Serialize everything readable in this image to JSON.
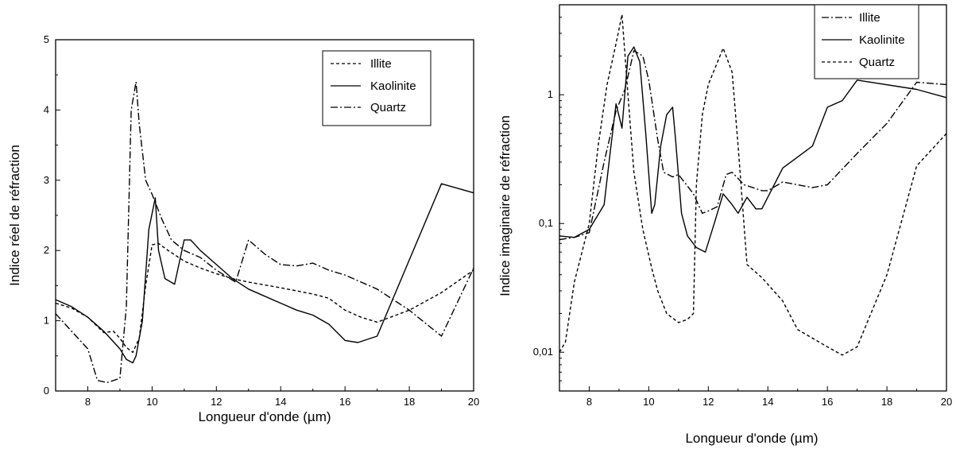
{
  "chart_data": [
    {
      "type": "line",
      "xlabel": "Longueur d'onde (µm)",
      "ylabel": "Indice réel de réfraction",
      "xlim": [
        7,
        20
      ],
      "ylim": [
        0,
        5
      ],
      "xticks": [
        "8",
        "10",
        "12",
        "14",
        "16",
        "18",
        "20"
      ],
      "yticks": [
        "0",
        "1",
        "2",
        "3",
        "4",
        "5"
      ],
      "legend_position": "top-right",
      "series": [
        {
          "name": "Illite",
          "dash": "dashed",
          "x": [
            7.0,
            7.5,
            8.0,
            8.5,
            8.8,
            9.0,
            9.2,
            9.4,
            9.6,
            9.8,
            10.0,
            10.2,
            10.5,
            11.0,
            11.5,
            12.0,
            12.5,
            13.0,
            14.0,
            15.0,
            15.5,
            16.0,
            16.5,
            17.0,
            18.0,
            19.0,
            20.0
          ],
          "y": [
            1.25,
            1.18,
            1.05,
            0.83,
            0.85,
            0.75,
            0.62,
            0.55,
            0.75,
            1.5,
            2.08,
            2.1,
            2.0,
            1.85,
            1.75,
            1.67,
            1.6,
            1.55,
            1.47,
            1.38,
            1.32,
            1.15,
            1.05,
            0.98,
            1.15,
            1.4,
            1.72
          ]
        },
        {
          "name": "Kaolinite",
          "dash": "solid",
          "x": [
            7.0,
            7.5,
            8.0,
            8.5,
            9.0,
            9.2,
            9.4,
            9.5,
            9.7,
            9.9,
            10.1,
            10.2,
            10.4,
            10.7,
            11.0,
            11.2,
            11.5,
            12.0,
            12.5,
            13.0,
            13.5,
            14.0,
            14.5,
            15.0,
            15.5,
            16.0,
            16.4,
            17.0,
            19.0,
            20.0
          ],
          "y": [
            1.3,
            1.2,
            1.05,
            0.85,
            0.6,
            0.45,
            0.4,
            0.5,
            1.0,
            2.3,
            2.75,
            2.0,
            1.6,
            1.52,
            2.15,
            2.15,
            2.0,
            1.8,
            1.6,
            1.45,
            1.35,
            1.25,
            1.15,
            1.08,
            0.95,
            0.72,
            0.69,
            0.78,
            2.95,
            2.82
          ]
        },
        {
          "name": "Quartz",
          "dash": "dashdot",
          "x": [
            7.0,
            7.5,
            8.0,
            8.3,
            8.6,
            9.0,
            9.2,
            9.35,
            9.5,
            9.6,
            9.8,
            10.0,
            10.3,
            10.6,
            11.0,
            11.5,
            12.0,
            12.6,
            13.0,
            13.5,
            14.0,
            14.5,
            15.0,
            15.5,
            16.0,
            16.5,
            17.0,
            17.5,
            18.0,
            19.0,
            20.0
          ],
          "y": [
            1.1,
            0.85,
            0.6,
            0.15,
            0.12,
            0.18,
            1.2,
            4.0,
            4.4,
            3.8,
            3.0,
            2.8,
            2.45,
            2.15,
            2.0,
            1.9,
            1.72,
            1.55,
            2.15,
            1.95,
            1.8,
            1.78,
            1.82,
            1.72,
            1.65,
            1.55,
            1.45,
            1.3,
            1.15,
            0.78,
            1.75
          ]
        }
      ]
    },
    {
      "type": "line",
      "xlabel": "Longueur d'onde (µm)",
      "ylabel": "Indice imaginaire de réfraction",
      "xlim": [
        7,
        20
      ],
      "ylim": [
        0.005,
        5
      ],
      "yscale": "log",
      "xticks": [
        "8",
        "10",
        "12",
        "14",
        "16",
        "18",
        "20"
      ],
      "yticks": [
        {
          "value": 0.01,
          "label": "0,01"
        },
        {
          "value": 0.1,
          "label": "0,1"
        },
        {
          "value": 1,
          "label": "1"
        }
      ],
      "legend_position": "top-right",
      "series": [
        {
          "name": "Illite",
          "dash": "dashdot",
          "x": [
            7.0,
            7.5,
            8.0,
            8.5,
            8.9,
            9.2,
            9.5,
            9.8,
            10.0,
            10.3,
            10.5,
            10.8,
            11.0,
            11.5,
            11.8,
            12.0,
            12.3,
            12.6,
            12.8,
            13.2,
            13.5,
            13.8,
            14.0,
            14.5,
            15.0,
            15.5,
            16.0,
            17.0,
            18.0,
            19.0,
            20.0
          ],
          "y": [
            0.075,
            0.078,
            0.085,
            0.3,
            0.75,
            1.1,
            2.2,
            2.0,
            1.3,
            0.45,
            0.25,
            0.23,
            0.24,
            0.17,
            0.12,
            0.125,
            0.135,
            0.24,
            0.25,
            0.2,
            0.19,
            0.18,
            0.18,
            0.21,
            0.2,
            0.19,
            0.2,
            0.35,
            0.6,
            1.25,
            1.2
          ]
        },
        {
          "name": "Kaolinite",
          "dash": "solid",
          "x": [
            7.0,
            7.5,
            8.0,
            8.5,
            8.7,
            8.9,
            9.1,
            9.3,
            9.5,
            9.7,
            9.9,
            10.1,
            10.2,
            10.4,
            10.6,
            10.8,
            10.9,
            11.1,
            11.3,
            11.6,
            11.9,
            12.2,
            12.5,
            12.8,
            13.0,
            13.3,
            13.6,
            13.8,
            14.5,
            15.5,
            16.0,
            16.5,
            17.0,
            19.0,
            20.0
          ],
          "y": [
            0.08,
            0.078,
            0.09,
            0.14,
            0.35,
            0.85,
            0.55,
            2.0,
            2.35,
            1.8,
            0.5,
            0.12,
            0.14,
            0.4,
            0.7,
            0.8,
            0.45,
            0.12,
            0.08,
            0.065,
            0.06,
            0.1,
            0.17,
            0.14,
            0.12,
            0.16,
            0.13,
            0.13,
            0.27,
            0.4,
            0.8,
            0.9,
            1.3,
            1.1,
            0.95
          ]
        },
        {
          "name": "Quartz",
          "dash": "dashed",
          "x": [
            7.0,
            7.2,
            7.5,
            8.0,
            8.3,
            8.6,
            8.9,
            9.1,
            9.3,
            9.5,
            9.8,
            10.1,
            10.3,
            10.6,
            11.0,
            11.3,
            11.5,
            11.6,
            11.8,
            12.0,
            12.5,
            12.8,
            13.0,
            13.3,
            13.8,
            14.5,
            15.0,
            16.0,
            16.5,
            17.0,
            18.0,
            19.0,
            20.0
          ],
          "y": [
            0.01,
            0.012,
            0.035,
            0.1,
            0.4,
            1.2,
            2.5,
            4.2,
            1.0,
            0.25,
            0.09,
            0.045,
            0.03,
            0.02,
            0.017,
            0.018,
            0.02,
            0.2,
            0.7,
            1.2,
            2.3,
            1.5,
            0.4,
            0.048,
            0.038,
            0.025,
            0.015,
            0.011,
            0.0095,
            0.011,
            0.04,
            0.28,
            0.5
          ]
        }
      ]
    }
  ]
}
